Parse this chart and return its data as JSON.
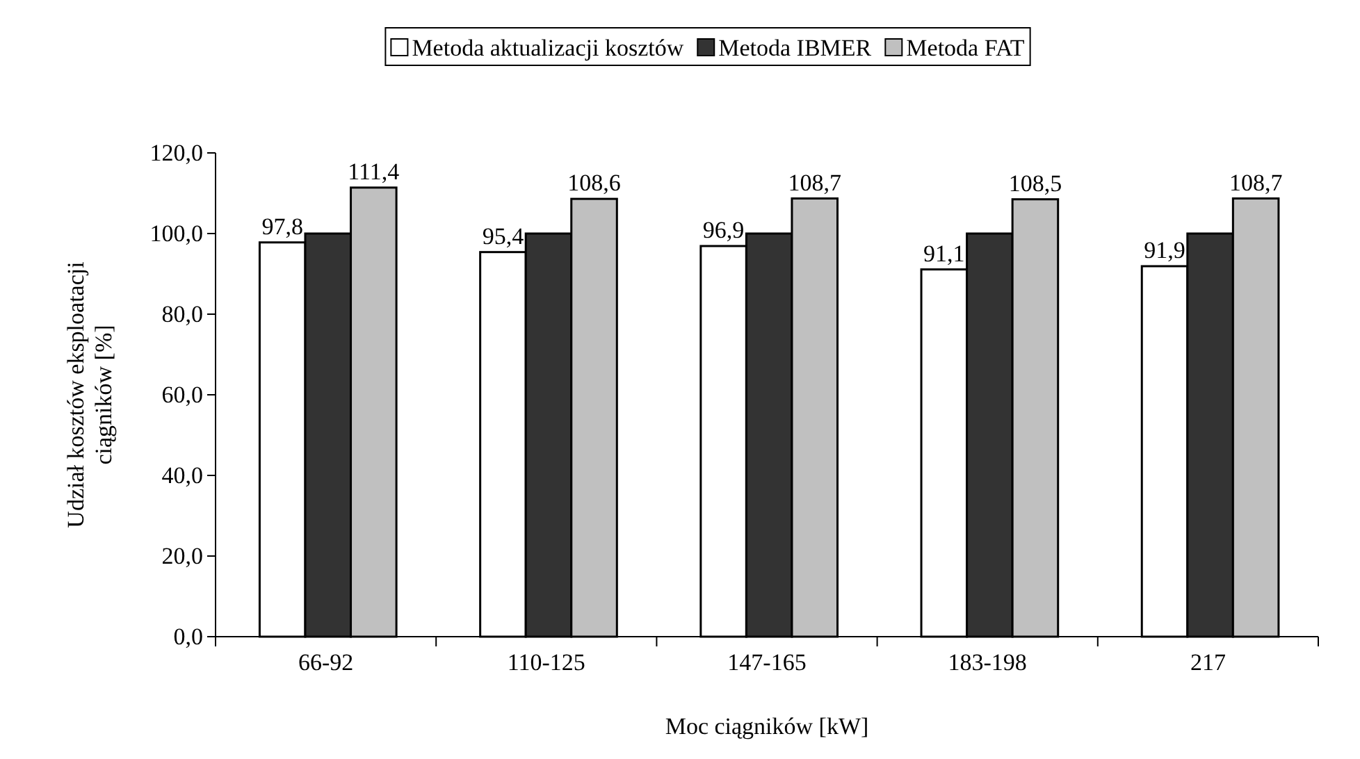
{
  "chart_data": {
    "type": "bar",
    "xlabel": "Moc ciągników [kW]",
    "ylabel": "Udział kosztów eksploatacji ciągników [%]",
    "categories": [
      "66-92",
      "110-125",
      "147-165",
      "183-198",
      "217"
    ],
    "series": [
      {
        "name": "Metoda aktualizacji kosztów",
        "color": "#ffffff",
        "values": [
          97.8,
          95.4,
          96.9,
          91.1,
          91.9
        ],
        "value_labels": [
          "97,8",
          "95,4",
          "96,9",
          "91,1",
          "91,9"
        ]
      },
      {
        "name": "Metoda IBMER",
        "color": "#333333",
        "values": [
          100,
          100,
          100,
          100,
          100
        ]
      },
      {
        "name": "Metoda FAT",
        "color": "#c0c0c0",
        "values": [
          111.4,
          108.6,
          108.7,
          108.5,
          108.7
        ],
        "value_labels": [
          "111,4",
          "108,6",
          "108,7",
          "108,5",
          "108,7"
        ]
      }
    ],
    "ylim": [
      0,
      120
    ],
    "yticks": [
      {
        "value": 0,
        "label": "0,0"
      },
      {
        "value": 20,
        "label": "20,0"
      },
      {
        "value": 40,
        "label": "40,0"
      },
      {
        "value": 60,
        "label": "60,0"
      },
      {
        "value": 80,
        "label": "80,0"
      },
      {
        "value": 100,
        "label": "100,0"
      },
      {
        "value": 120,
        "label": "120,0"
      }
    ],
    "legend": "top",
    "grid": false
  }
}
